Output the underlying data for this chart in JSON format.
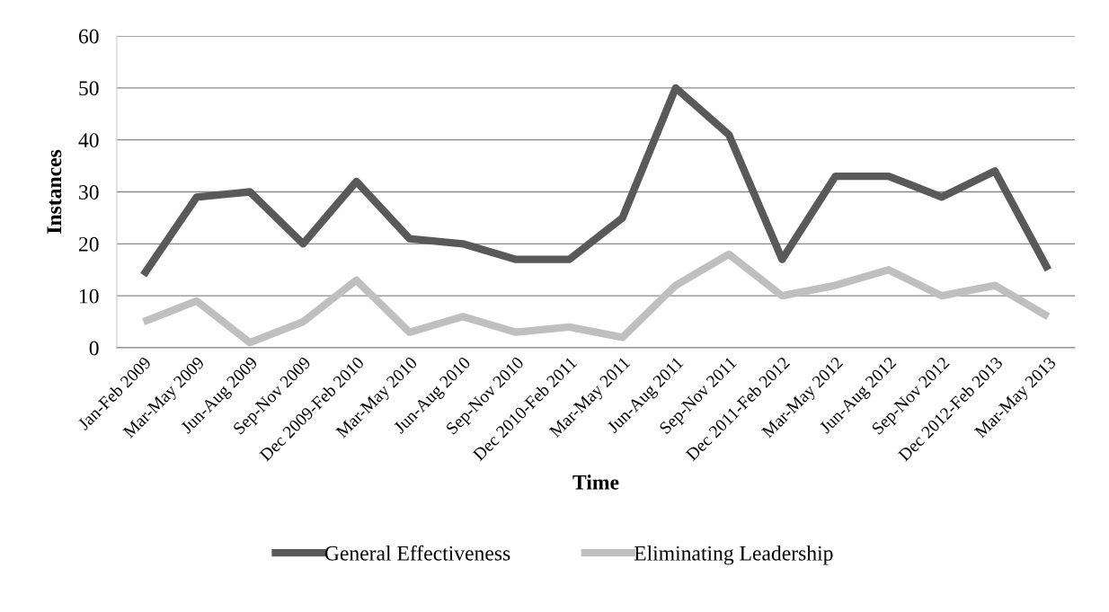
{
  "chart_data": {
    "type": "line",
    "xlabel": "Time",
    "ylabel": "Instances",
    "categories": [
      "Jan-Feb 2009",
      "Mar-May 2009",
      "Jun-Aug 2009",
      "Sep-Nov 2009",
      "Dec 2009-Feb 2010",
      "Mar-May 2010",
      "Jun-Aug 2010",
      "Sep-Nov 2010",
      "Dec 2010-Feb 2011",
      "Mar-May 2011",
      "Jun-Aug 2011",
      "Sep-Nov 2011",
      "Dec 2011-Feb 2012",
      "Mar-May 2012",
      "Jun-Aug 2012",
      "Sep-Nov 2012",
      "Dec 2012-Feb 2013",
      "Mar-May 2013"
    ],
    "series": [
      {
        "name": "General Effectiveness",
        "color": "#595959",
        "values": [
          14,
          29,
          30,
          20,
          32,
          21,
          20,
          17,
          17,
          25,
          50,
          41,
          17,
          33,
          33,
          29,
          34,
          15
        ]
      },
      {
        "name": "Eliminating Leadership",
        "color": "#bfbfbf",
        "values": [
          5,
          9,
          1,
          5,
          13,
          3,
          6,
          3,
          4,
          2,
          12,
          18,
          10,
          12,
          15,
          10,
          12,
          6
        ]
      }
    ],
    "ylim": [
      0,
      60
    ],
    "yticks": [
      0,
      10,
      20,
      30,
      40,
      50,
      60
    ],
    "grid": "y",
    "legend": "bottom",
    "marker": "none",
    "line_style": "solid"
  }
}
